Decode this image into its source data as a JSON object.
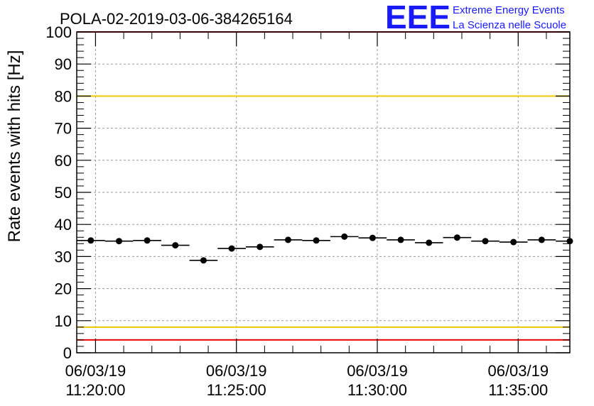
{
  "chart_data": {
    "type": "scatter",
    "title": "POLA-02-2019-03-06-384265164",
    "ylabel": "Rate events with hits [Hz]",
    "xlabel": "",
    "ylim": [
      0,
      100
    ],
    "yticks": [
      "0",
      "10",
      "20",
      "30",
      "40",
      "50",
      "60",
      "70",
      "80",
      "90",
      "100"
    ],
    "xlim": [
      "06/03/19 11:19:20",
      "06/03/19 11:36:50"
    ],
    "xticks": [
      {
        "date": "06/03/19",
        "time": "11:20:00"
      },
      {
        "date": "06/03/19",
        "time": "11:25:00"
      },
      {
        "date": "06/03/19",
        "time": "11:30:00"
      },
      {
        "date": "06/03/19",
        "time": "11:35:00"
      }
    ],
    "grid": true,
    "bin_width_seconds": 60,
    "points": [
      {
        "x": "11:19:50",
        "y": 35.0
      },
      {
        "x": "11:20:50",
        "y": 34.8
      },
      {
        "x": "11:21:50",
        "y": 35.0
      },
      {
        "x": "11:22:50",
        "y": 33.5
      },
      {
        "x": "11:23:50",
        "y": 28.8
      },
      {
        "x": "11:24:50",
        "y": 32.5
      },
      {
        "x": "11:25:50",
        "y": 33.0
      },
      {
        "x": "11:26:50",
        "y": 35.2
      },
      {
        "x": "11:27:50",
        "y": 35.0
      },
      {
        "x": "11:28:50",
        "y": 36.2
      },
      {
        "x": "11:29:50",
        "y": 35.8
      },
      {
        "x": "11:30:50",
        "y": 35.2
      },
      {
        "x": "11:31:50",
        "y": 34.3
      },
      {
        "x": "11:32:50",
        "y": 35.9
      },
      {
        "x": "11:33:50",
        "y": 34.8
      },
      {
        "x": "11:34:50",
        "y": 34.5
      },
      {
        "x": "11:35:50",
        "y": 35.2
      },
      {
        "x": "11:36:50",
        "y": 34.8
      }
    ],
    "reference_lines": [
      {
        "y": 100,
        "color": "#ee0000"
      },
      {
        "y": 80,
        "color": "#f0c800"
      },
      {
        "y": 8,
        "color": "#f0c800"
      },
      {
        "y": 4,
        "color": "#ee0000"
      }
    ],
    "marker_color": "#000000"
  },
  "logo": {
    "mark": "EEE",
    "line1": "Extreme Energy Events",
    "line2": "La Scienza nelle Scuole",
    "color": "#1a1aff"
  }
}
